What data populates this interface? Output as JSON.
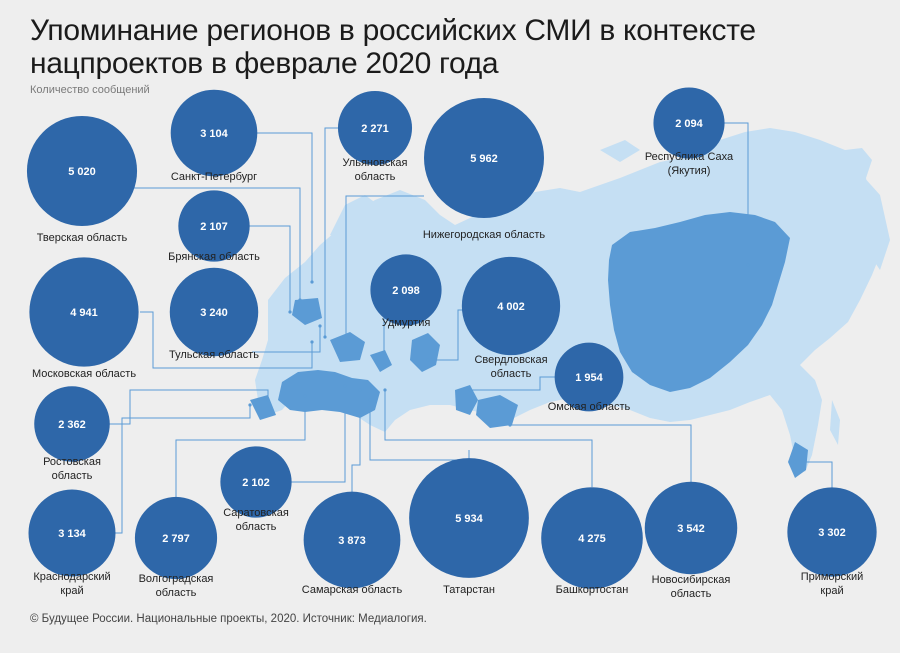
{
  "header": {
    "title_line1": "Упоминание регионов в российских СМИ в контексте",
    "title_line2": "нацпроектов в феврале 2020 года",
    "subtitle": "Количество сообщений"
  },
  "footer": {
    "source": "© Будущее России. Национальные проекты, 2020. Источник: Медиалогия."
  },
  "colors": {
    "background": "#eeeeee",
    "map_light": "#c5dff3",
    "map_mid": "#9fc8ea",
    "map_region": "#5b9bd5",
    "bubble": "#2e67a9",
    "leader_line": "#5b9bd5",
    "label_text": "#222222",
    "value_text": "#ffffff"
  },
  "chart_data": {
    "type": "bubble",
    "title": "Упоминание регионов в российских СМИ в контексте нацпроектов в феврале 2020 года",
    "unit": "Количество сообщений",
    "series": [
      {
        "region": "Тверская область",
        "value": 5020,
        "value_label": "5 020"
      },
      {
        "region": "Санкт-Петербург",
        "value": 3104,
        "value_label": "3 104"
      },
      {
        "region": "Ульяновская область",
        "value": 2271,
        "value_label": "2 271"
      },
      {
        "region": "Нижегородская область",
        "value": 5962,
        "value_label": "5 962"
      },
      {
        "region": "Республика Саха (Якутия)",
        "value": 2094,
        "value_label": "2 094"
      },
      {
        "region": "Брянская область",
        "value": 2107,
        "value_label": "2 107"
      },
      {
        "region": "Московская область",
        "value": 4941,
        "value_label": "4 941"
      },
      {
        "region": "Тульская область",
        "value": 3240,
        "value_label": "3 240"
      },
      {
        "region": "Удмуртия",
        "value": 2098,
        "value_label": "2 098"
      },
      {
        "region": "Свердловская область",
        "value": 4002,
        "value_label": "4 002"
      },
      {
        "region": "Омская область",
        "value": 1954,
        "value_label": "1 954"
      },
      {
        "region": "Ростовская область",
        "value": 2362,
        "value_label": "2 362"
      },
      {
        "region": "Саратовская область",
        "value": 2102,
        "value_label": "2 102"
      },
      {
        "region": "Краснодарский край",
        "value": 3134,
        "value_label": "3 134"
      },
      {
        "region": "Волгоградская область",
        "value": 2797,
        "value_label": "2 797"
      },
      {
        "region": "Самарская область",
        "value": 3873,
        "value_label": "3 873"
      },
      {
        "region": "Татарстан",
        "value": 5934,
        "value_label": "5 934"
      },
      {
        "region": "Башкортостан",
        "value": 4275,
        "value_label": "4 275"
      },
      {
        "region": "Новосибирская область",
        "value": 3542,
        "value_label": "3 542"
      },
      {
        "region": "Приморский край",
        "value": 3302,
        "value_label": "3 302"
      }
    ],
    "labels": [
      [
        "Тверская область"
      ],
      [
        "Санкт-Петербург"
      ],
      [
        "Ульяновская",
        "область"
      ],
      [
        "Нижегородская область"
      ],
      [
        "Республика Саха",
        "(Якутия)"
      ],
      [
        "Брянская область"
      ],
      [
        "Московская область"
      ],
      [
        "Тульская область"
      ],
      [
        "Удмуртия"
      ],
      [
        "Свердловская",
        "область"
      ],
      [
        "Омская область"
      ],
      [
        "Ростовская",
        "область"
      ],
      [
        "Саратовская",
        "область"
      ],
      [
        "Краснодарский",
        "край"
      ],
      [
        "Волгоградская",
        "область"
      ],
      [
        "Самарская область"
      ],
      [
        "Татарстан"
      ],
      [
        "Башкортостан"
      ],
      [
        "Новосибирская",
        "область"
      ],
      [
        "Приморский",
        "край"
      ]
    ]
  }
}
